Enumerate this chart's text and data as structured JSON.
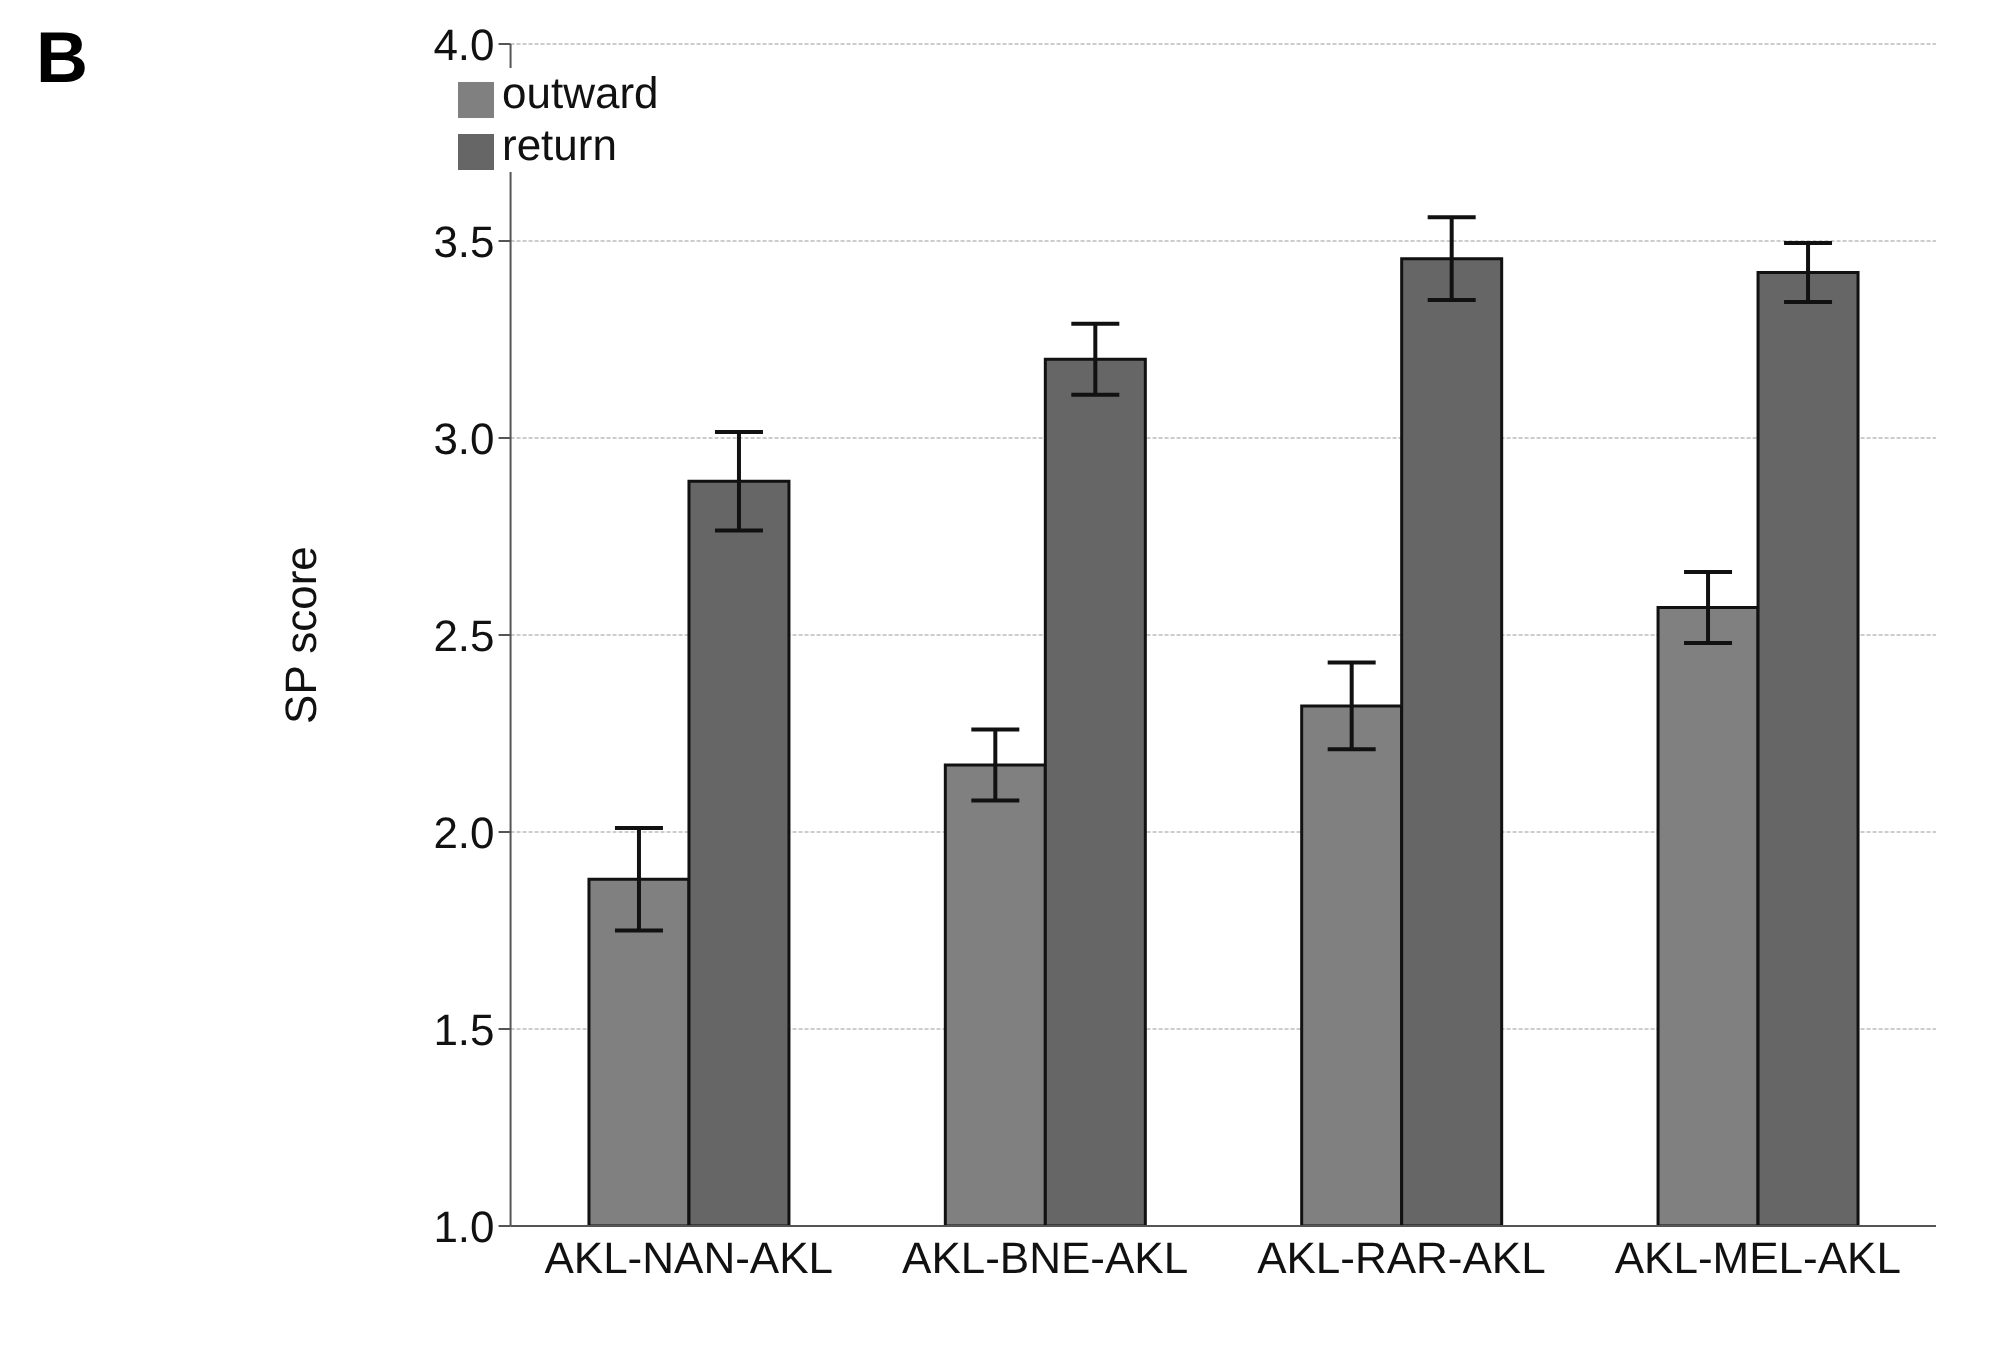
{
  "chart_data": {
    "type": "bar",
    "title": "B",
    "ylabel": "SP score",
    "categories": [
      "AKL-NAN-AKL",
      "AKL-BNE-AKL",
      "AKL-RAR-AKL",
      "AKL-MEL-AKL"
    ],
    "series": [
      {
        "name": "outward",
        "color": "#808080",
        "values": [
          1.88,
          2.17,
          2.32,
          2.57
        ],
        "errors": [
          0.13,
          0.09,
          0.11,
          0.09
        ]
      },
      {
        "name": "return",
        "color": "#666666",
        "values": [
          2.89,
          3.2,
          3.455,
          3.42
        ],
        "errors": [
          0.125,
          0.09,
          0.105,
          0.075
        ]
      }
    ],
    "ylim": [
      1.0,
      4.0
    ],
    "yticks": [
      {
        "value": 1.0,
        "label": "1.0"
      },
      {
        "value": 1.5,
        "label": "1.5"
      },
      {
        "value": 2.0,
        "label": "2.0"
      },
      {
        "value": 2.5,
        "label": "2.5"
      },
      {
        "value": 3.0,
        "label": "3.0"
      },
      {
        "value": 3.5,
        "label": "3.5"
      },
      {
        "value": 4.0,
        "label": "4.0"
      }
    ],
    "grid": "y",
    "legend": "top left"
  }
}
